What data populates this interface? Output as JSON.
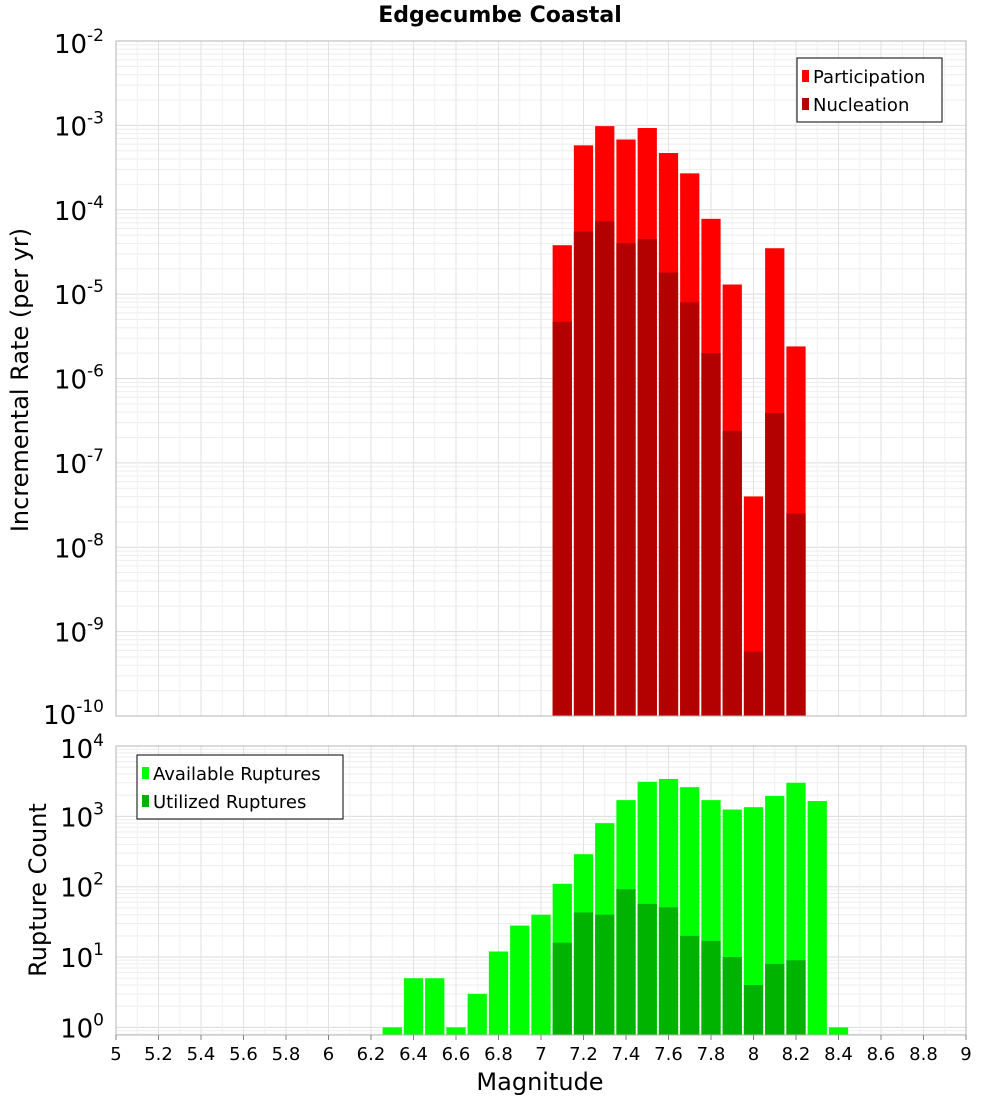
{
  "chart_data": [
    {
      "type": "bar",
      "title": "Edgecumbe Coastal",
      "xlabel": "",
      "ylabel": "Incremental Rate (per yr)",
      "yscale": "log",
      "ylim": [
        1e-10,
        0.01
      ],
      "xlim": [
        5,
        9
      ],
      "grid": true,
      "legend_position": "top-right",
      "bar_width": 0.1,
      "y_tick_exponents": [
        "-2",
        "-3",
        "-4",
        "-5",
        "-6",
        "-7",
        "-8",
        "-9",
        "-10"
      ],
      "y_tick_base": "10",
      "series": [
        {
          "name": "Participation",
          "color": "#ff0000",
          "x": [
            7.1,
            7.2,
            7.3,
            7.4,
            7.5,
            7.6,
            7.7,
            7.8,
            7.9,
            8.0,
            8.1,
            8.2
          ],
          "values": [
            3.8e-05,
            0.00058,
            0.00098,
            0.00068,
            0.00093,
            0.00047,
            0.00027,
            7.8e-05,
            1.3e-05,
            4e-08,
            3.5e-05,
            2.4e-06
          ]
        },
        {
          "name": "Nucleation",
          "color": "#b30000",
          "x": [
            7.1,
            7.2,
            7.3,
            7.4,
            7.5,
            7.6,
            7.7,
            7.8,
            7.9,
            8.0,
            8.1,
            8.2
          ],
          "values": [
            4.7e-06,
            5.5e-05,
            7.3e-05,
            4e-05,
            4.5e-05,
            1.8e-05,
            8e-06,
            2e-06,
            2.4e-07,
            5.8e-10,
            3.9e-07,
            2.5e-08
          ]
        }
      ]
    },
    {
      "type": "bar",
      "title": "",
      "xlabel": "Magnitude",
      "ylabel": "Rupture Count",
      "yscale": "log",
      "ylim": [
        0.78,
        10000
      ],
      "xlim": [
        5,
        9
      ],
      "grid": true,
      "legend_position": "top-left",
      "bar_width": 0.1,
      "y_tick_exponents": [
        "4",
        "3",
        "2",
        "1",
        "0"
      ],
      "y_tick_base": "10",
      "x_tick_labels": [
        "5",
        "5.2",
        "5.4",
        "5.6",
        "5.8",
        "6",
        "6.2",
        "6.4",
        "6.6",
        "6.8",
        "7",
        "7.2",
        "7.4",
        "7.6",
        "7.8",
        "8",
        "8.2",
        "8.4",
        "8.6",
        "8.8",
        "9"
      ],
      "series": [
        {
          "name": "Available Ruptures",
          "color": "#00ff00",
          "x": [
            6.3,
            6.4,
            6.5,
            6.6,
            6.7,
            6.8,
            6.9,
            7.0,
            7.1,
            7.2,
            7.3,
            7.4,
            7.5,
            7.6,
            7.7,
            7.8,
            7.9,
            8.0,
            8.1,
            8.2,
            8.3,
            8.4
          ],
          "values": [
            1,
            5,
            5,
            1,
            3,
            12,
            28,
            40,
            110,
            290,
            800,
            1700,
            3100,
            3400,
            2600,
            1700,
            1250,
            1350,
            1950,
            3000,
            1650,
            1
          ]
        },
        {
          "name": "Utilized Ruptures",
          "color": "#00b300",
          "x": [
            7.1,
            7.2,
            7.3,
            7.4,
            7.5,
            7.6,
            7.7,
            7.8,
            7.9,
            8.0,
            8.1,
            8.2
          ],
          "values": [
            16,
            43,
            40,
            92,
            57,
            51,
            20,
            17,
            10,
            4,
            8,
            9
          ]
        }
      ]
    }
  ]
}
